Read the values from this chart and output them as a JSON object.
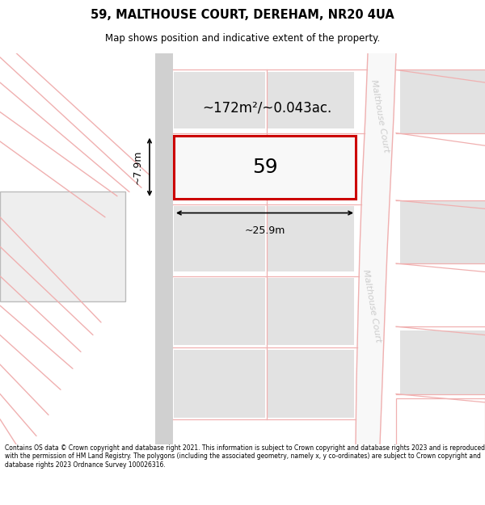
{
  "title": "59, MALTHOUSE COURT, DEREHAM, NR20 4UA",
  "subtitle": "Map shows position and indicative extent of the property.",
  "footer": "Contains OS data © Crown copyright and database right 2021. This information is subject to Crown copyright and database rights 2023 and is reproduced with the permission of HM Land Registry. The polygons (including the associated geometry, namely x, y co-ordinates) are subject to Crown copyright and database rights 2023 Ordnance Survey 100026316.",
  "highlight_color": "#cc0000",
  "dim_text": "~172m²/~0.043ac.",
  "dim_width": "~25.9m",
  "dim_height": "~7.9m",
  "property_number": "59",
  "street_label": "Malthouse Court",
  "road_color": "#f0b0b0",
  "block_fill": "#e2e2e2",
  "road_fill": "#ffffff",
  "road_edge_color": "#cccccc"
}
